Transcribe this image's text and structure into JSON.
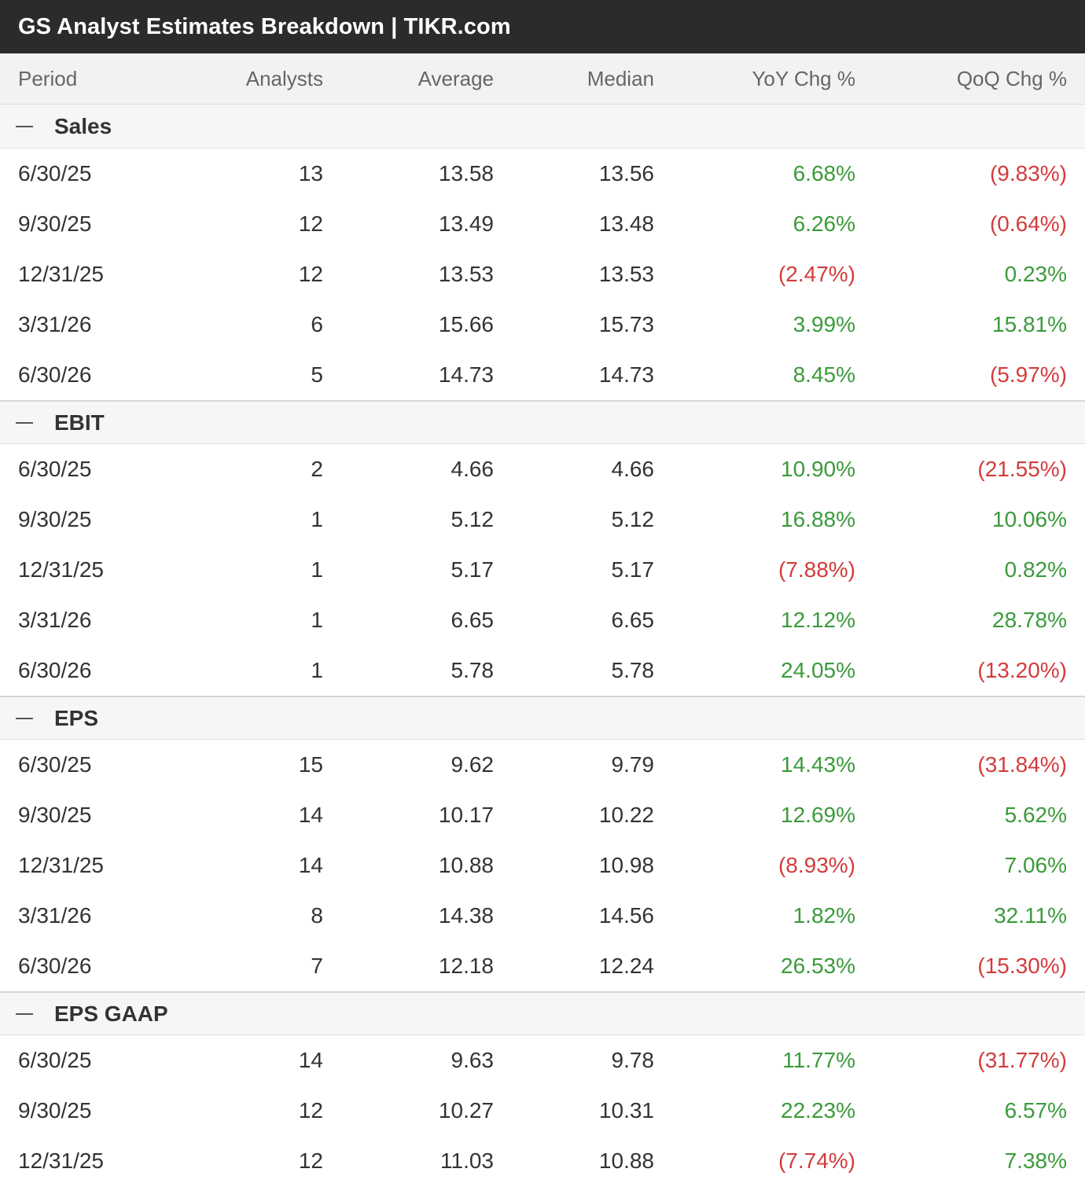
{
  "title": "GS Analyst Estimates Breakdown | TIKR.com",
  "columns": {
    "period": "Period",
    "analysts": "Analysts",
    "average": "Average",
    "median": "Median",
    "yoy": "YoY Chg %",
    "qoq": "QoQ Chg %"
  },
  "colors": {
    "positive": "#3b9a3b",
    "negative": "#d23c3c",
    "title_bg": "#2b2b2b"
  },
  "sections": [
    {
      "label": "Sales",
      "toggle_icon": "collapse-minus-icon",
      "rows": [
        {
          "period": "6/30/25",
          "analysts": "13",
          "average": "13.58",
          "median": "13.56",
          "yoy": "6.68%",
          "yoy_sign": "pos",
          "qoq": "(9.83%)",
          "qoq_sign": "neg"
        },
        {
          "period": "9/30/25",
          "analysts": "12",
          "average": "13.49",
          "median": "13.48",
          "yoy": "6.26%",
          "yoy_sign": "pos",
          "qoq": "(0.64%)",
          "qoq_sign": "neg"
        },
        {
          "period": "12/31/25",
          "analysts": "12",
          "average": "13.53",
          "median": "13.53",
          "yoy": "(2.47%)",
          "yoy_sign": "neg",
          "qoq": "0.23%",
          "qoq_sign": "pos"
        },
        {
          "period": "3/31/26",
          "analysts": "6",
          "average": "15.66",
          "median": "15.73",
          "yoy": "3.99%",
          "yoy_sign": "pos",
          "qoq": "15.81%",
          "qoq_sign": "pos"
        },
        {
          "period": "6/30/26",
          "analysts": "5",
          "average": "14.73",
          "median": "14.73",
          "yoy": "8.45%",
          "yoy_sign": "pos",
          "qoq": "(5.97%)",
          "qoq_sign": "neg"
        }
      ]
    },
    {
      "label": "EBIT",
      "toggle_icon": "collapse-minus-icon",
      "rows": [
        {
          "period": "6/30/25",
          "analysts": "2",
          "average": "4.66",
          "median": "4.66",
          "yoy": "10.90%",
          "yoy_sign": "pos",
          "qoq": "(21.55%)",
          "qoq_sign": "neg"
        },
        {
          "period": "9/30/25",
          "analysts": "1",
          "average": "5.12",
          "median": "5.12",
          "yoy": "16.88%",
          "yoy_sign": "pos",
          "qoq": "10.06%",
          "qoq_sign": "pos"
        },
        {
          "period": "12/31/25",
          "analysts": "1",
          "average": "5.17",
          "median": "5.17",
          "yoy": "(7.88%)",
          "yoy_sign": "neg",
          "qoq": "0.82%",
          "qoq_sign": "pos"
        },
        {
          "period": "3/31/26",
          "analysts": "1",
          "average": "6.65",
          "median": "6.65",
          "yoy": "12.12%",
          "yoy_sign": "pos",
          "qoq": "28.78%",
          "qoq_sign": "pos"
        },
        {
          "period": "6/30/26",
          "analysts": "1",
          "average": "5.78",
          "median": "5.78",
          "yoy": "24.05%",
          "yoy_sign": "pos",
          "qoq": "(13.20%)",
          "qoq_sign": "neg"
        }
      ]
    },
    {
      "label": "EPS",
      "toggle_icon": "collapse-minus-icon",
      "rows": [
        {
          "period": "6/30/25",
          "analysts": "15",
          "average": "9.62",
          "median": "9.79",
          "yoy": "14.43%",
          "yoy_sign": "pos",
          "qoq": "(31.84%)",
          "qoq_sign": "neg"
        },
        {
          "period": "9/30/25",
          "analysts": "14",
          "average": "10.17",
          "median": "10.22",
          "yoy": "12.69%",
          "yoy_sign": "pos",
          "qoq": "5.62%",
          "qoq_sign": "pos"
        },
        {
          "period": "12/31/25",
          "analysts": "14",
          "average": "10.88",
          "median": "10.98",
          "yoy": "(8.93%)",
          "yoy_sign": "neg",
          "qoq": "7.06%",
          "qoq_sign": "pos"
        },
        {
          "period": "3/31/26",
          "analysts": "8",
          "average": "14.38",
          "median": "14.56",
          "yoy": "1.82%",
          "yoy_sign": "pos",
          "qoq": "32.11%",
          "qoq_sign": "pos"
        },
        {
          "period": "6/30/26",
          "analysts": "7",
          "average": "12.18",
          "median": "12.24",
          "yoy": "26.53%",
          "yoy_sign": "pos",
          "qoq": "(15.30%)",
          "qoq_sign": "neg"
        }
      ]
    },
    {
      "label": "EPS GAAP",
      "toggle_icon": "collapse-minus-icon",
      "rows": [
        {
          "period": "6/30/25",
          "analysts": "14",
          "average": "9.63",
          "median": "9.78",
          "yoy": "11.77%",
          "yoy_sign": "pos",
          "qoq": "(31.77%)",
          "qoq_sign": "neg"
        },
        {
          "period": "9/30/25",
          "analysts": "12",
          "average": "10.27",
          "median": "10.31",
          "yoy": "22.23%",
          "yoy_sign": "pos",
          "qoq": "6.57%",
          "qoq_sign": "pos"
        },
        {
          "period": "12/31/25",
          "analysts": "12",
          "average": "11.03",
          "median": "10.88",
          "yoy": "(7.74%)",
          "yoy_sign": "neg",
          "qoq": "7.38%",
          "qoq_sign": "pos"
        }
      ]
    }
  ]
}
